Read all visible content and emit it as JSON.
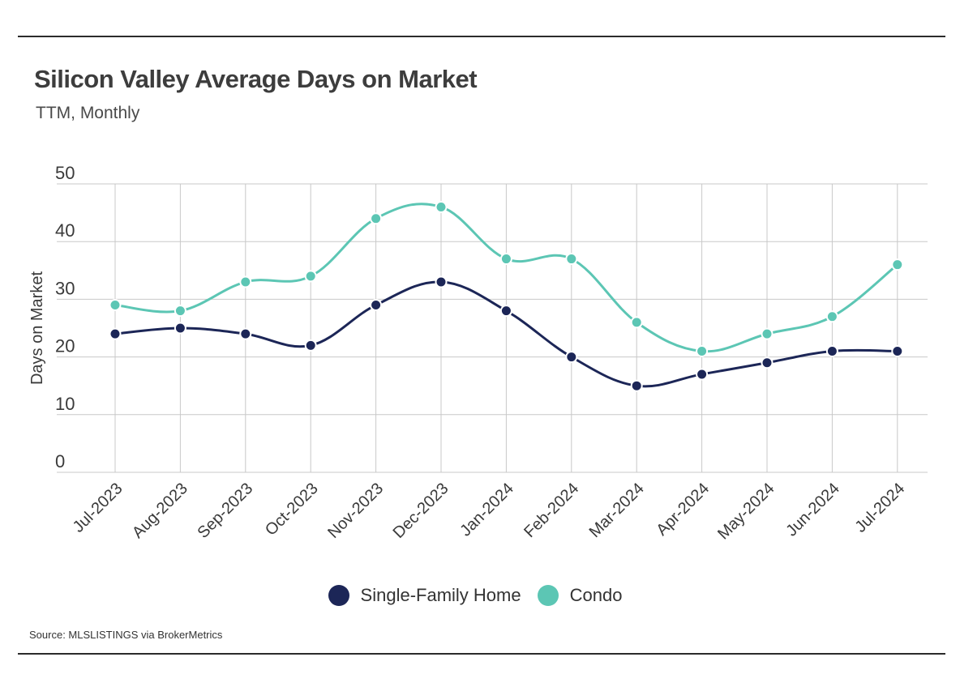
{
  "header": {
    "title": "Silicon Valley Average Days on Market",
    "subtitle": "TTM, Monthly"
  },
  "footer": {
    "source": "Source:  MLSLISTINGS via BrokerMetrics"
  },
  "colors": {
    "single_family": "#1c2657",
    "condo": "#5cc6b4",
    "grid": "#c8c8c8"
  },
  "chart_data": {
    "type": "line",
    "title": "Silicon Valley Average Days on Market",
    "subtitle": "TTM, Monthly",
    "xlabel": "",
    "ylabel": "Days on Market",
    "ylim": [
      0,
      50
    ],
    "yticks": [
      0,
      10,
      20,
      30,
      40,
      50
    ],
    "grid": true,
    "legend_position": "bottom",
    "categories": [
      "Jul-2023",
      "Aug-2023",
      "Sep-2023",
      "Oct-2023",
      "Nov-2023",
      "Dec-2023",
      "Jan-2024",
      "Feb-2024",
      "Mar-2024",
      "Apr-2024",
      "May-2024",
      "Jun-2024",
      "Jul-2024"
    ],
    "series": [
      {
        "name": "Single-Family Home",
        "color": "#1c2657",
        "values": [
          24,
          25,
          24,
          22,
          29,
          33,
          28,
          20,
          15,
          17,
          19,
          21,
          21
        ]
      },
      {
        "name": "Condo",
        "color": "#5cc6b4",
        "values": [
          29,
          28,
          33,
          34,
          44,
          46,
          37,
          37,
          26,
          21,
          24,
          27,
          36
        ]
      }
    ]
  }
}
